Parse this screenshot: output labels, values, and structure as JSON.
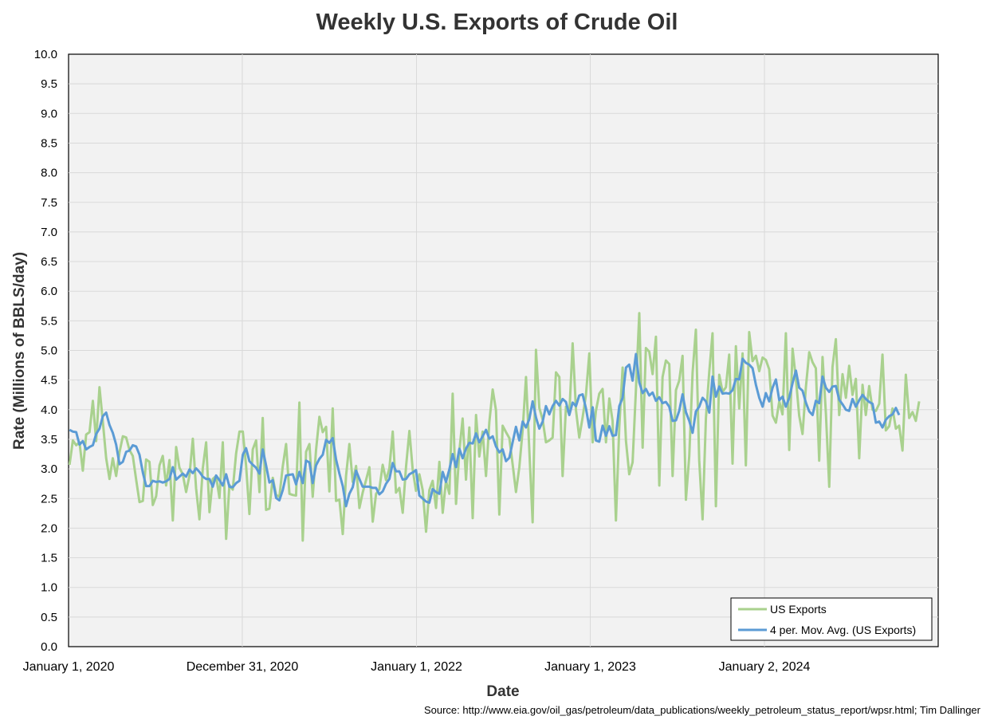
{
  "title": "Weekly U.S. Exports of Crude Oil",
  "source": "Source: http://www.eia.gov/oil_gas/petroleum/data_publications/weekly_petroleum_status_report/wpsr.html; Tim Dallinger",
  "colors": {
    "exports": "#a9d18e",
    "moving_avg": "#5b9bd5",
    "plot_bg": "#f2f2f2",
    "grid": "#d9d9d9"
  },
  "chart_data": {
    "type": "line",
    "title": "Weekly U.S. Exports of Crude Oil",
    "xlabel": "Date",
    "ylabel": "Rate (Millions of BBLS/day)",
    "ylim": [
      0,
      10
    ],
    "yticks": [
      "0.0",
      "0.5",
      "1.0",
      "1.5",
      "2.0",
      "2.5",
      "3.0",
      "3.5",
      "4.0",
      "4.5",
      "5.0",
      "5.5",
      "6.0",
      "6.5",
      "7.0",
      "7.5",
      "8.0",
      "8.5",
      "9.0",
      "9.5",
      "10.0"
    ],
    "xlim": [
      "2020-01-01",
      "2025-01-01"
    ],
    "xticks": [
      {
        "date": "2020-01-01",
        "label": "January 1, 2020"
      },
      {
        "date": "2020-12-31",
        "label": "December 31, 2020"
      },
      {
        "date": "2022-01-01",
        "label": "January 1, 2022"
      },
      {
        "date": "2023-01-01",
        "label": "January 1, 2023"
      },
      {
        "date": "2024-01-02",
        "label": "January 2, 2024"
      }
    ],
    "grid": true,
    "legend_position": "bottom-right",
    "series": [
      {
        "name": "US Exports",
        "x_start": "2020-01-03",
        "x_interval_days": 7,
        "values": [
          3.07,
          3.48,
          3.4,
          3.45,
          2.97,
          3.58,
          3.62,
          4.15,
          3.47,
          4.38,
          3.8,
          3.18,
          2.83,
          3.18,
          2.88,
          3.28,
          3.55,
          3.53,
          3.32,
          3.22,
          2.82,
          2.44,
          2.46,
          3.16,
          3.12,
          2.39,
          2.54,
          3.06,
          3.22,
          2.72,
          3.15,
          2.13,
          3.37,
          3.02,
          2.91,
          2.61,
          2.89,
          3.51,
          2.67,
          2.15,
          3.01,
          3.45,
          2.27,
          2.83,
          2.88,
          2.51,
          3.45,
          1.82,
          2.73,
          2.65,
          3.26,
          3.63,
          3.63,
          3.06,
          2.24,
          3.33,
          3.48,
          2.61,
          3.86,
          2.31,
          2.33,
          2.85,
          2.56,
          2.53,
          3.04,
          3.42,
          2.58,
          2.56,
          2.55,
          4.12,
          1.79,
          3.29,
          3.42,
          2.53,
          3.32,
          3.88,
          3.62,
          3.71,
          2.62,
          4.02,
          2.46,
          2.48,
          1.9,
          2.88,
          3.42,
          2.78,
          3.05,
          2.34,
          2.6,
          2.81,
          3.03,
          2.11,
          2.58,
          2.66,
          3.07,
          2.81,
          3.01,
          3.63,
          2.6,
          2.68,
          2.26,
          3.04,
          3.64,
          2.99,
          2.63,
          2.91,
          2.64,
          1.94,
          2.64,
          2.8,
          2.34,
          3.12,
          2.26,
          2.8,
          2.58,
          4.27,
          2.41,
          3.31,
          3.85,
          2.82,
          3.7,
          2.17,
          3.91,
          3.21,
          3.63,
          2.88,
          3.79,
          4.34,
          3.99,
          2.23,
          3.73,
          3.62,
          3.52,
          3.08,
          2.61,
          3.03,
          3.66,
          4.55,
          3.33,
          2.1,
          5.01,
          4.03,
          3.83,
          3.45,
          3.48,
          3.53,
          4.63,
          4.55,
          2.88,
          4.05,
          3.92,
          5.12,
          3.99,
          3.53,
          3.87,
          4.25,
          4.95,
          3.45,
          3.98,
          4.27,
          4.35,
          3.45,
          4.19,
          3.81,
          2.13,
          3.71,
          4.71,
          3.47,
          2.91,
          3.11,
          4.34,
          5.63,
          3.36,
          5.04,
          4.98,
          4.6,
          5.23,
          2.72,
          4.55,
          4.83,
          4.77,
          2.88,
          4.33,
          4.49,
          4.91,
          2.48,
          3.22,
          4.63,
          5.35,
          3.14,
          2.15,
          3.86,
          4.64,
          5.29,
          2.37,
          4.59,
          4.3,
          4.38,
          4.93,
          3.09,
          5.07,
          4.02,
          4.95,
          3.06,
          5.31,
          4.82,
          4.91,
          4.65,
          4.88,
          4.84,
          4.68,
          3.9,
          3.78,
          4.14,
          3.92,
          5.29,
          3.32,
          5.03,
          4.52,
          3.9,
          3.59,
          4.38,
          4.97,
          4.8,
          4.7,
          3.14,
          4.89,
          3.94,
          2.7,
          4.72,
          5.19,
          3.91,
          4.6,
          4.2,
          4.74,
          4.25,
          4.52,
          3.18,
          4.42,
          3.91,
          4.4,
          4.0,
          3.98,
          4.1,
          4.93,
          3.65,
          3.72,
          4.02,
          3.68,
          3.73,
          3.31,
          4.59,
          3.86,
          3.96,
          3.81,
          4.14
        ]
      },
      {
        "name": "4 per. Mov. Avg. (US Exports)",
        "x_start": "2020-01-03",
        "x_interval_days": 7,
        "values": [
          3.66,
          3.63,
          3.62,
          3.41,
          3.47,
          3.33,
          3.37,
          3.4,
          3.59,
          3.68,
          3.89,
          3.95,
          3.74,
          3.61,
          3.41,
          3.08,
          3.12,
          3.29,
          3.31,
          3.4,
          3.38,
          3.24,
          2.94,
          2.71,
          2.71,
          2.8,
          2.78,
          2.79,
          2.77,
          2.79,
          2.83,
          3.03,
          2.82,
          2.87,
          2.92,
          2.87,
          2.99,
          2.93,
          3.01,
          2.95,
          2.87,
          2.83,
          2.83,
          2.7,
          2.89,
          2.81,
          2.72,
          2.91,
          2.7,
          2.69,
          2.76,
          2.8,
          3.24,
          3.35,
          3.13,
          3.07,
          3.02,
          2.92,
          3.33,
          3.06,
          2.77,
          2.81,
          2.51,
          2.47,
          2.64,
          2.89,
          2.9,
          2.91,
          2.74,
          2.95,
          2.76,
          3.14,
          3.11,
          2.76,
          3.06,
          3.17,
          3.24,
          3.49,
          3.44,
          3.52,
          3.16,
          2.92,
          2.71,
          2.37,
          2.58,
          2.69,
          2.97,
          2.83,
          2.7,
          2.7,
          2.7,
          2.68,
          2.68,
          2.57,
          2.62,
          2.75,
          2.83,
          3.1,
          2.96,
          2.96,
          2.82,
          2.83,
          2.91,
          2.94,
          2.98,
          2.55,
          2.5,
          2.45,
          2.43,
          2.66,
          2.61,
          2.58,
          2.95,
          2.78,
          2.99,
          3.25,
          3.03,
          3.34,
          3.18,
          3.34,
          3.44,
          3.43,
          3.6,
          3.45,
          3.55,
          3.66,
          3.51,
          3.55,
          3.38,
          3.28,
          3.33,
          3.13,
          3.19,
          3.45,
          3.71,
          3.48,
          3.8,
          3.7,
          3.84,
          4.14,
          3.87,
          3.68,
          3.8,
          4.06,
          3.92,
          4.06,
          4.15,
          4.07,
          4.18,
          4.13,
          3.91,
          4.12,
          4.06,
          4.24,
          4.26,
          4.02,
          3.7,
          4.04,
          3.48,
          3.46,
          3.73,
          3.56,
          3.72,
          3.56,
          3.57,
          4.06,
          4.2,
          4.71,
          4.76,
          4.49,
          4.94,
          4.46,
          4.28,
          4.35,
          4.24,
          4.29,
          4.15,
          4.21,
          4.11,
          4.13,
          4.05,
          3.81,
          3.82,
          3.98,
          4.26,
          3.96,
          3.81,
          3.61,
          3.97,
          4.05,
          4.2,
          4.14,
          3.95,
          4.56,
          4.22,
          4.39,
          4.27,
          4.28,
          4.27,
          4.33,
          4.52,
          4.51,
          4.86,
          4.79,
          4.76,
          4.7,
          4.42,
          4.2,
          4.05,
          4.28,
          4.14,
          4.37,
          4.51,
          4.16,
          4.22,
          4.05,
          4.2,
          4.45,
          4.66,
          4.37,
          4.32,
          4.12,
          3.97,
          3.91,
          4.15,
          4.11,
          4.56,
          4.37,
          4.3,
          4.39,
          4.4,
          4.17,
          4.09,
          4.0,
          3.98,
          4.18,
          4.05,
          4.16,
          4.25,
          4.18,
          4.13,
          4.1,
          3.78,
          3.8,
          3.7,
          3.83,
          3.89,
          3.92,
          4.03,
          3.91
        ]
      }
    ]
  }
}
